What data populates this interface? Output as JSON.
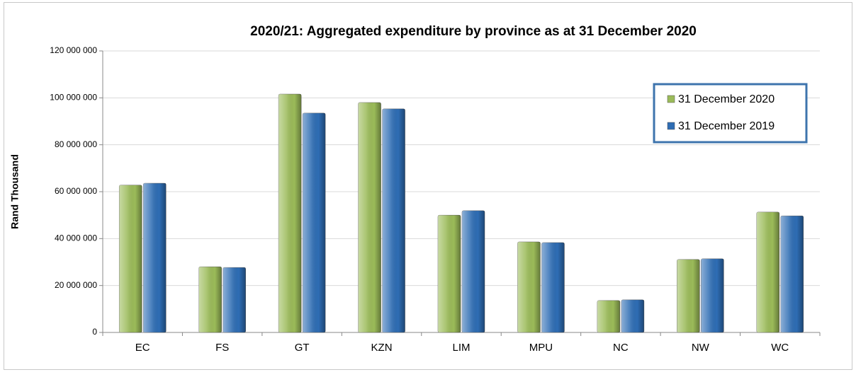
{
  "chart_data": {
    "type": "bar",
    "title": "2020/21: Aggregated expenditure by province as at 31 December 2020",
    "y_label": "Rand Thousand",
    "categories": [
      "EC",
      "FS",
      "GT",
      "KZN",
      "LIM",
      "MPU",
      "NC",
      "NW",
      "WC"
    ],
    "series": [
      {
        "name": "31 December 2020",
        "color": "#9bbb59",
        "values": [
          62800000,
          28000000,
          101600000,
          98000000,
          50000000,
          38600000,
          13600000,
          31100000,
          51300000
        ]
      },
      {
        "name": "31 December 2019",
        "color": "#2e6db4",
        "values": [
          63600000,
          27700000,
          93500000,
          95300000,
          51900000,
          38300000,
          13900000,
          31400000,
          49700000
        ]
      }
    ],
    "ylim": [
      0,
      120000000
    ],
    "yticks": [
      0,
      {
        "value": 20000000,
        "label": "20 000 000"
      },
      {
        "value": 40000000,
        "label": "40 000 000"
      },
      {
        "value": 60000000,
        "label": "60 000 000"
      },
      {
        "value": 80000000,
        "label": "80 000 000"
      },
      {
        "value": 100000000,
        "label": "100 000 000"
      },
      {
        "value": 120000000,
        "label": "120 000 000"
      }
    ],
    "grid": true,
    "legend": "upper right"
  }
}
